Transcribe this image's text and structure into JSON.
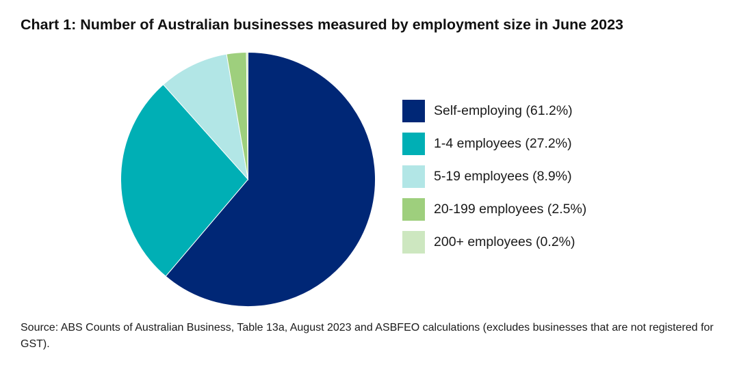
{
  "chart_data": {
    "type": "pie",
    "title": "Chart 1: Number of Australian businesses measured by employment size in June 2023",
    "categories": [
      "Self-employing",
      "1-4 employees",
      "5-19 employees",
      "20-199 employees",
      "200+ employees"
    ],
    "values": [
      61.2,
      27.2,
      8.9,
      2.5,
      0.2
    ],
    "colors": [
      "#002776",
      "#00afb5",
      "#b2e6e6",
      "#9ecf7d",
      "#cde7c0"
    ],
    "legend_labels": [
      "Self-employing (61.2%)",
      "1-4 employees (27.2%)",
      "5-19 employees (8.9%)",
      "20-199 employees (2.5%)",
      "200+ employees (0.2%)"
    ],
    "legend_position": "right",
    "start_angle": "12 o'clock",
    "direction": "clockwise"
  },
  "source": "Source: ABS Counts of Australian Business, Table 13a, August 2023 and ASBFEO calculations (excludes businesses that are not registered for GST)."
}
